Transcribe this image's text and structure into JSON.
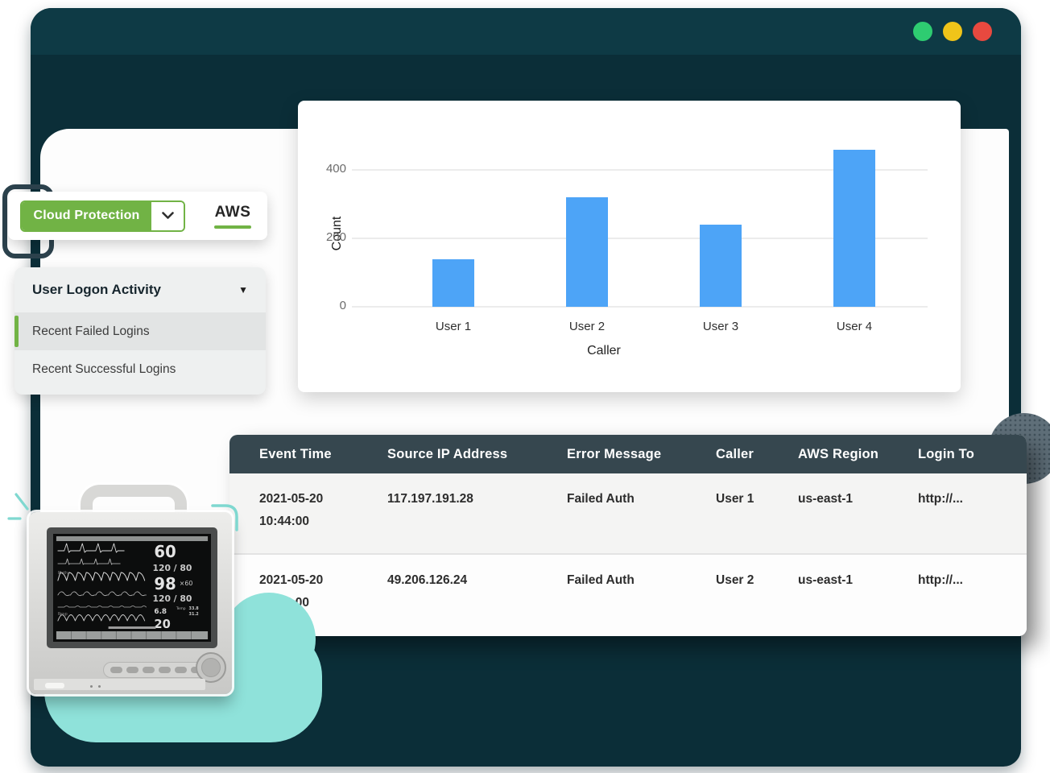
{
  "window": {
    "traffic_lights": [
      {
        "name": "green",
        "color": "#2ecc71"
      },
      {
        "name": "yellow",
        "color": "#f0c419"
      },
      {
        "name": "red",
        "color": "#e8493f"
      }
    ]
  },
  "toolbar": {
    "product_button": "Cloud Protection",
    "platform_tab": "AWS"
  },
  "widget_menu": {
    "title": "User Logon Activity",
    "items": [
      {
        "label": "Recent Failed Logins",
        "selected": true
      },
      {
        "label": "Recent Successful Logins",
        "selected": false
      }
    ]
  },
  "chart_data": {
    "type": "bar",
    "categories": [
      "User 1",
      "User 2",
      "User 3",
      "User 4"
    ],
    "values": [
      140,
      320,
      240,
      460
    ],
    "title": "",
    "xlabel": "Caller",
    "ylabel": "Count",
    "yticks": [
      0,
      200,
      400
    ],
    "ylim": [
      0,
      480
    ],
    "grid": "horizontal",
    "legend": "none",
    "bar_color": "#4da4f7"
  },
  "table": {
    "columns": [
      "Event Time",
      "Source IP Address",
      "Error Message",
      "Caller",
      "AWS Region",
      "Login To"
    ],
    "rows": [
      {
        "event_date": "2021-05-20",
        "event_time": "10:44:00",
        "source_ip": "117.197.191.28",
        "error_message": "Failed Auth",
        "caller": "User 1",
        "aws_region": "us-east-1",
        "login_to": "http://..."
      },
      {
        "event_date": "2021-05-20",
        "event_time": "10:44:00",
        "source_ip": "49.206.126.24",
        "error_message": "Failed Auth",
        "caller": "User 2",
        "aws_region": "us-east-1",
        "login_to": "http://..."
      }
    ]
  },
  "monitor": {
    "readings": {
      "hr": "60",
      "nibp_top": "120 / 80",
      "spo2": "98",
      "pulse_rate": "×60",
      "nibp_bottom": "120 / 80",
      "cvp": "6.8",
      "resp": "20",
      "temp_label": "Temp",
      "temp1": "33.8",
      "temp2": "31.2"
    },
    "labels": {
      "pleth": "Pleth",
      "resp": "Resp"
    }
  },
  "colors": {
    "accent_green": "#71b345",
    "bar_blue": "#4da4f7",
    "window_titlebar": "#0e3a45",
    "window_body": "#0b2e38",
    "table_header_bg": "#36474f",
    "cloud_teal": "#8fe2da"
  }
}
